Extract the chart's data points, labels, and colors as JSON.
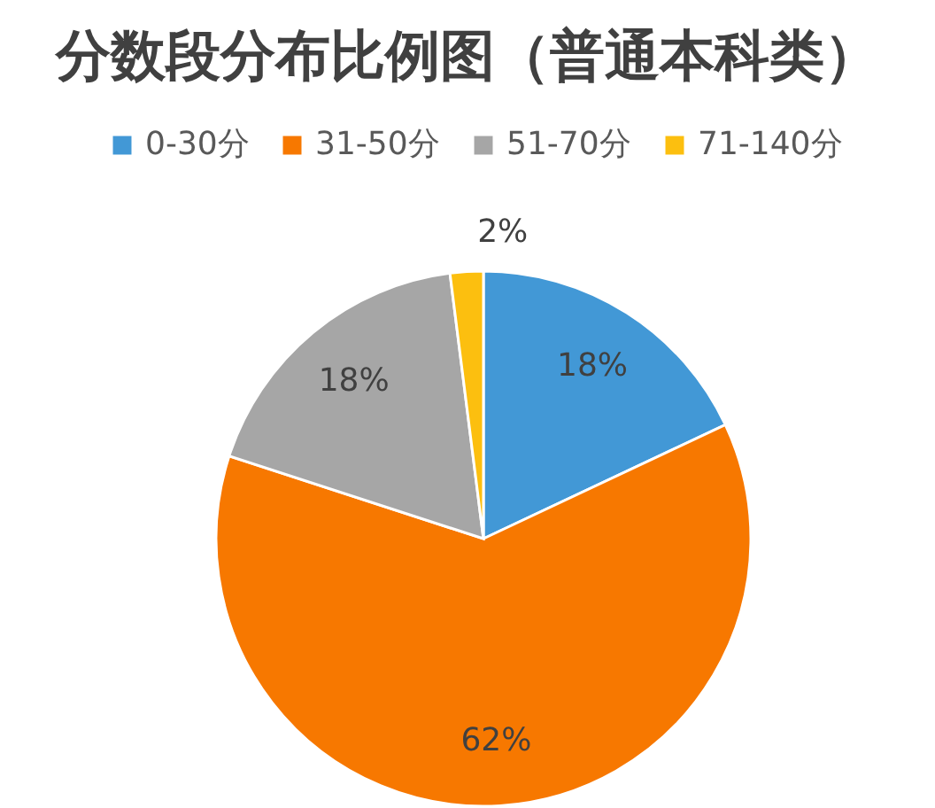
{
  "chart_data": {
    "type": "pie",
    "title": "分数段分布比例图（普通本科类）",
    "categories": [
      "0-30分",
      "31-50分",
      "51-70分",
      "71-140分"
    ],
    "values": [
      18,
      62,
      18,
      2
    ],
    "colors": [
      "#4298d6",
      "#f77800",
      "#a6a6a6",
      "#fcbf0f"
    ],
    "value_labels": [
      "18%",
      "62%",
      "18%",
      "2%"
    ],
    "legend": "top"
  }
}
